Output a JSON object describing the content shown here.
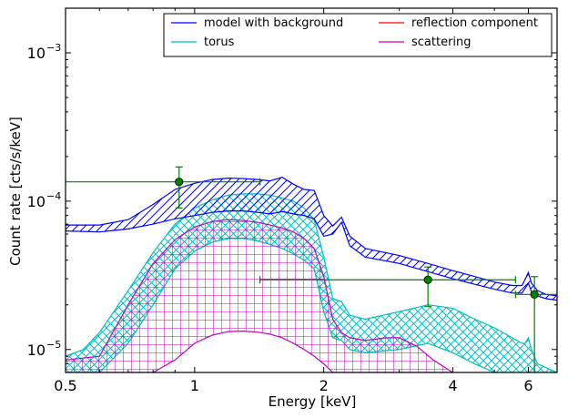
{
  "chart_data": {
    "type": "line",
    "title": "",
    "xlabel": "Energy [keV]",
    "ylabel": "Count rate [cts/s/keV]",
    "xscale": "log",
    "yscale": "log",
    "xlim": [
      0.5,
      7.0
    ],
    "ylim": [
      7e-06,
      0.002
    ],
    "x_ticks": [
      {
        "value": 0.5,
        "label": "0.5"
      },
      {
        "value": 1,
        "label": "1"
      },
      {
        "value": 2,
        "label": "2"
      },
      {
        "value": 4,
        "label": "4"
      },
      {
        "value": 6,
        "label": "6"
      }
    ],
    "y_ticks": [
      {
        "value": 1e-05,
        "base": "10",
        "exp": "−5"
      },
      {
        "value": 0.0001,
        "base": "10",
        "exp": "−4"
      },
      {
        "value": 0.001,
        "base": "10",
        "exp": "−3"
      }
    ],
    "grid": false,
    "legend_position": "top-right",
    "legend_columns": 2,
    "series": [
      {
        "name": "model with background",
        "color": "#0000ff",
        "hatch": "diagonal",
        "x": [
          0.5,
          0.6,
          0.7,
          0.8,
          0.9,
          1.0,
          1.1,
          1.2,
          1.3,
          1.4,
          1.5,
          1.6,
          1.7,
          1.8,
          1.9,
          2.0,
          2.1,
          2.2,
          2.3,
          2.5,
          3.0,
          3.5,
          4.0,
          4.5,
          5.0,
          5.5,
          5.8,
          6.0,
          6.1,
          6.3,
          6.6,
          7.0
        ],
        "upper": [
          6.9e-05,
          6.9e-05,
          7.5e-05,
          9.5e-05,
          0.00012,
          0.000132,
          0.00014,
          0.000143,
          0.000142,
          0.00014,
          0.000137,
          0.000145,
          0.00013,
          0.00012,
          0.000118,
          8e-05,
          6.8e-05,
          7.8e-05,
          5.8e-05,
          4.8e-05,
          4.3e-05,
          3.8e-05,
          3.4e-05,
          3.1e-05,
          2.85e-05,
          2.7e-05,
          2.7e-05,
          3.3e-05,
          2.8e-05,
          2.5e-05,
          2.35e-05,
          2.3e-05
        ],
        "lower": [
          6.3e-05,
          6.2e-05,
          6.5e-05,
          7e-05,
          7.6e-05,
          8e-05,
          8.4e-05,
          8.6e-05,
          8.6e-05,
          8.4e-05,
          8.2e-05,
          8.5e-05,
          8.2e-05,
          8e-05,
          7.6e-05,
          5.8e-05,
          6e-05,
          7.2e-05,
          5e-05,
          4.2e-05,
          3.8e-05,
          3.35e-05,
          3e-05,
          2.75e-05,
          2.55e-05,
          2.4e-05,
          2.4e-05,
          2.8e-05,
          2.45e-05,
          2.3e-05,
          2.2e-05,
          2.15e-05
        ]
      },
      {
        "name": "torus",
        "color": "#00bfbf",
        "hatch": "cross",
        "x": [
          0.5,
          0.55,
          0.6,
          0.7,
          0.8,
          0.9,
          1.0,
          1.1,
          1.2,
          1.3,
          1.4,
          1.5,
          1.6,
          1.7,
          1.8,
          1.9,
          2.0,
          2.1,
          2.2,
          2.3,
          2.5,
          3.0,
          3.5,
          4.0,
          4.5,
          5.0,
          5.5,
          5.8,
          5.9,
          6.0,
          6.1,
          6.3,
          7.0
        ],
        "upper": [
          9e-06,
          1e-05,
          1.3e-05,
          2.5e-05,
          4.5e-05,
          7e-05,
          9e-05,
          0.000102,
          0.00011,
          0.000112,
          0.000112,
          0.00011,
          0.000105,
          0.0001,
          9e-05,
          7.5e-05,
          4.2e-05,
          2.2e-05,
          2.1e-05,
          1.7e-05,
          1.6e-05,
          1.8e-05,
          2e-05,
          1.9e-05,
          1.6e-05,
          1.4e-05,
          1.2e-05,
          1.1e-05,
          1.1e-05,
          1.2e-05,
          1e-05,
          8e-06,
          7e-06
        ],
        "lower": [
          7e-06,
          7e-06,
          7e-06,
          1.1e-05,
          2e-05,
          3.5e-05,
          4.6e-05,
          5.3e-05,
          5.6e-05,
          5.6e-05,
          5.4e-05,
          5.1e-05,
          4.8e-05,
          4.4e-05,
          4e-05,
          3.5e-05,
          1.8e-05,
          1.2e-05,
          1.15e-05,
          1e-05,
          9.5e-06,
          1e-05,
          1.1e-05,
          9.5e-06,
          8e-06,
          7e-06,
          7e-06,
          7e-06,
          7e-06,
          7e-06,
          7e-06,
          7e-06,
          7e-06
        ]
      },
      {
        "name": "reflection component",
        "color": "#ff0000",
        "hatch": "none",
        "x": [],
        "upper": [],
        "lower": []
      },
      {
        "name": "scattering",
        "color": "#bf00bf",
        "hatch": "grid",
        "x": [
          0.5,
          0.6,
          0.7,
          0.8,
          0.9,
          1.0,
          1.1,
          1.2,
          1.3,
          1.4,
          1.5,
          1.6,
          1.7,
          1.8,
          1.9,
          2.0,
          2.1,
          2.2,
          2.3,
          2.5,
          2.8,
          3.0,
          3.3,
          3.6,
          4.0
        ],
        "upper": [
          8.5e-06,
          9e-06,
          2e-05,
          3.8e-05,
          5.5e-05,
          6.7e-05,
          7.3e-05,
          7.5e-05,
          7.4e-05,
          7.2e-05,
          6.9e-05,
          6.6e-05,
          6.2e-05,
          5.6e-05,
          4.8e-05,
          3.1e-05,
          1.6e-05,
          1.3e-05,
          1.2e-05,
          1.15e-05,
          1.2e-05,
          1.2e-05,
          1.05e-05,
          8.5e-06,
          7e-06
        ],
        "lower": [
          7e-06,
          7e-06,
          7e-06,
          7e-06,
          8.5e-06,
          1.1e-05,
          1.25e-05,
          1.32e-05,
          1.33e-05,
          1.31e-05,
          1.27e-05,
          1.2e-05,
          1.1e-05,
          1e-05,
          9e-06,
          8e-06,
          7e-06,
          7e-06,
          7e-06,
          7e-06,
          7e-06,
          7e-06,
          7e-06,
          7e-06,
          7e-06
        ]
      }
    ],
    "data_points": {
      "color": "#008000",
      "points": [
        {
          "x": 0.92,
          "y": 0.000135,
          "xerr": [
            0.5,
            1.42
          ],
          "yerr": [
            9e-05,
            0.00017
          ]
        },
        {
          "x": 3.5,
          "y": 2.95e-05,
          "xerr": [
            1.42,
            5.6
          ],
          "yerr": [
            1.95e-05,
            3.6e-05
          ]
        },
        {
          "x": 6.2,
          "y": 2.35e-05,
          "xerr": [
            5.6,
            7.0
          ],
          "yerr": [
            7e-06,
            3.1e-05
          ]
        }
      ]
    }
  }
}
